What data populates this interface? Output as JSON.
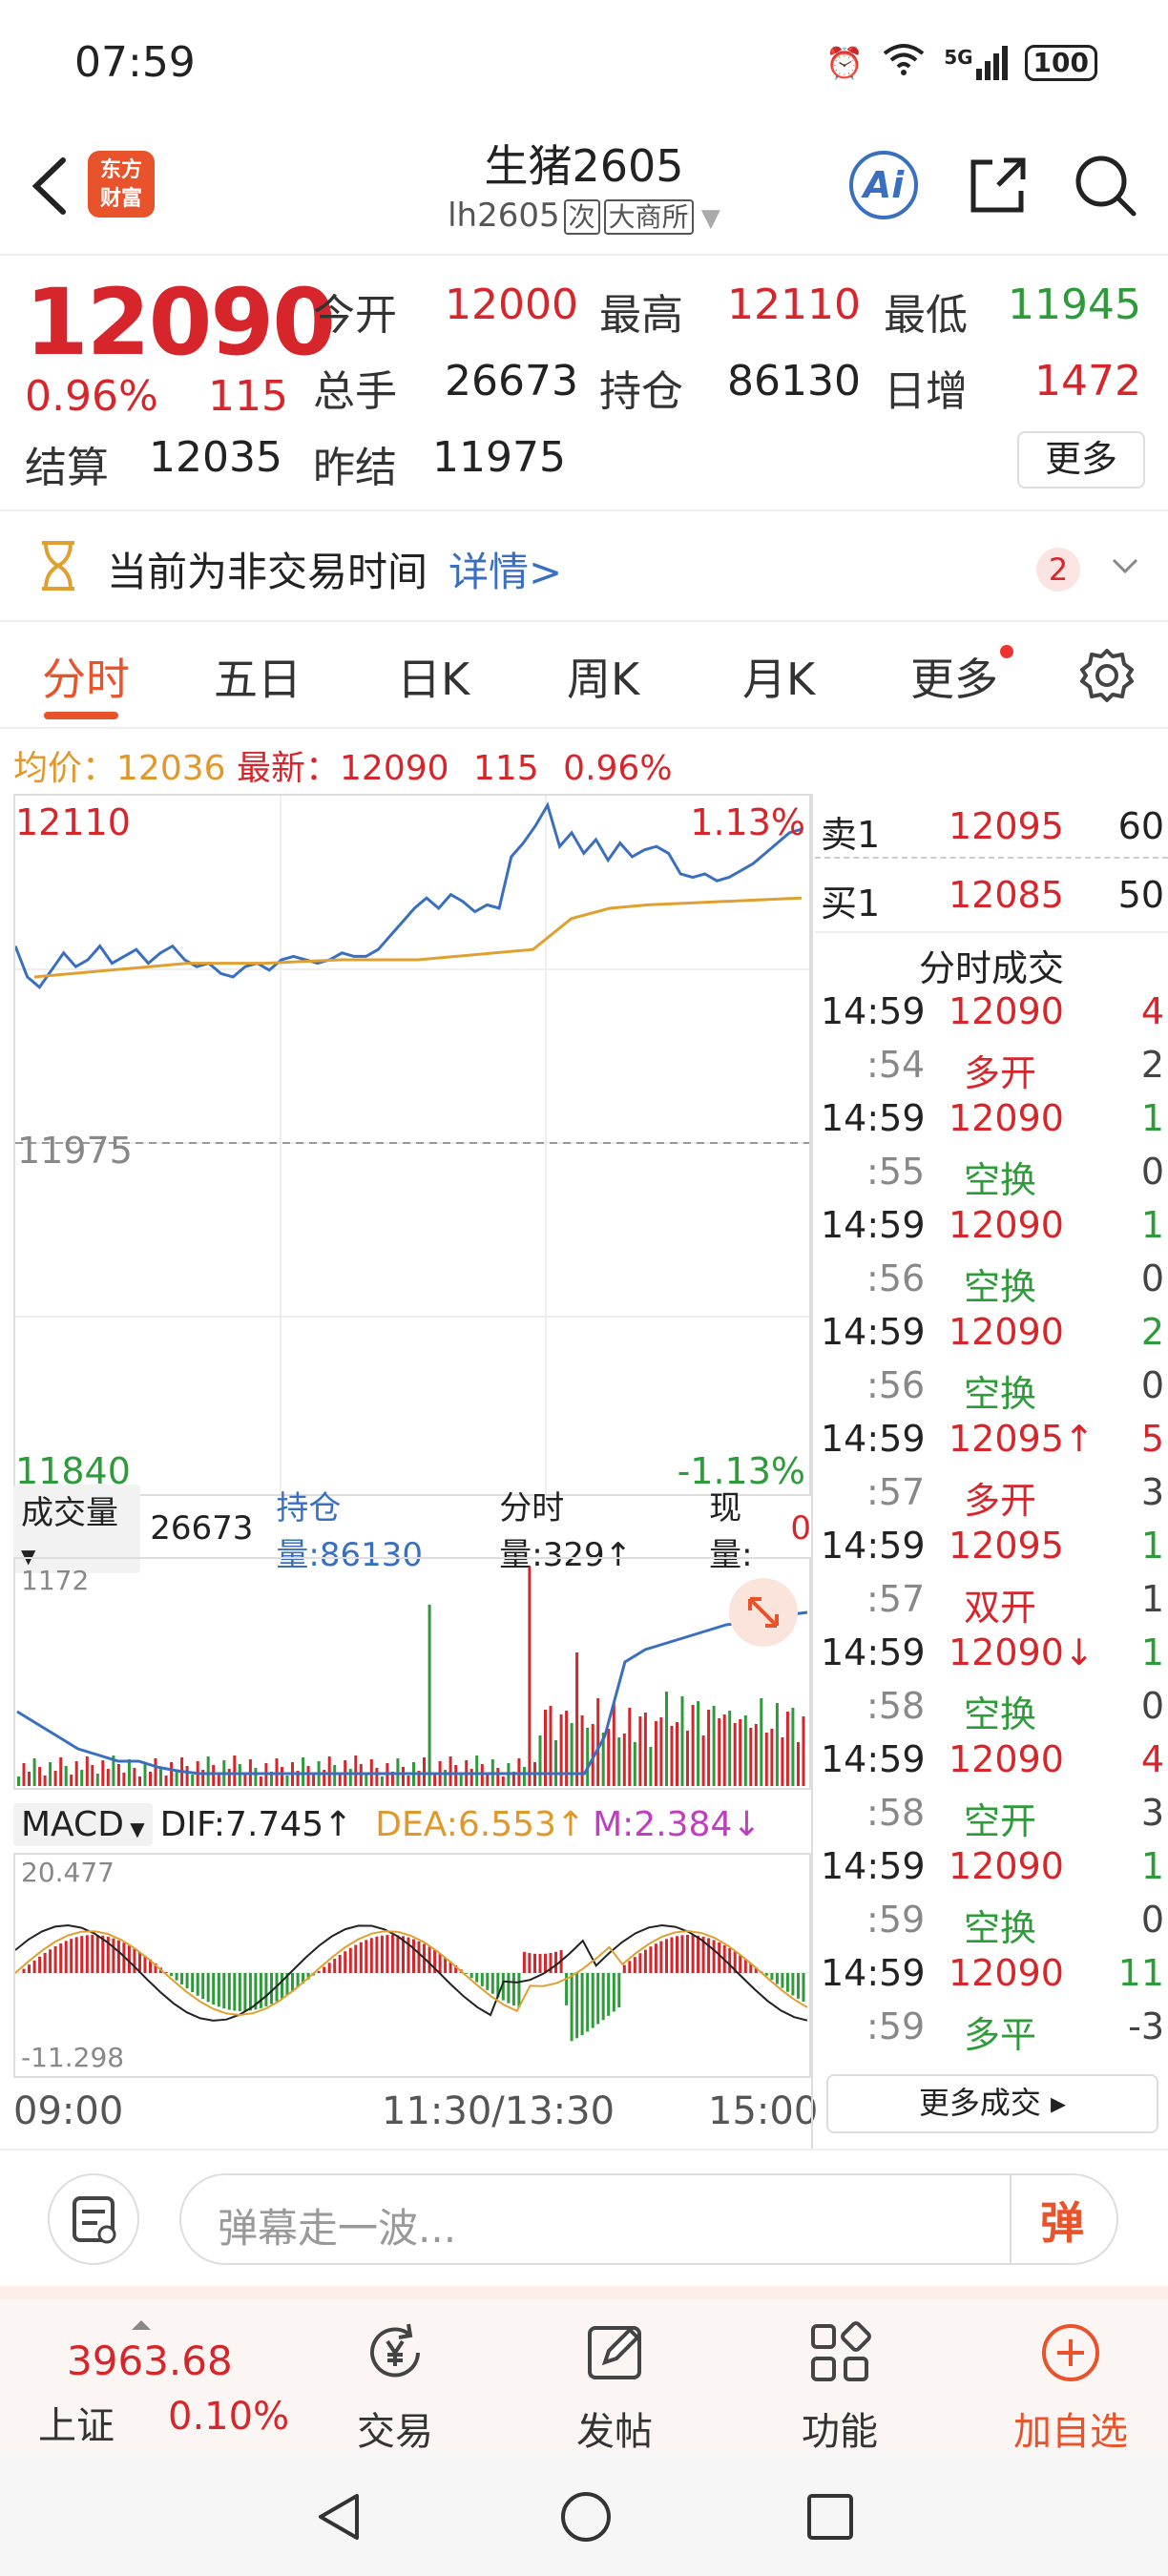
{
  "status": {
    "time": "07:59",
    "network": "5G",
    "battery": "100"
  },
  "header": {
    "title": "生猪2605",
    "code": "lh2605",
    "tag1": "次",
    "tag2": "大商所",
    "logo_line1": "东方",
    "logo_line2": "财富",
    "ai_label": "Ai"
  },
  "quote": {
    "price": "12090",
    "pct": "0.96%",
    "change": "115",
    "open_label": "今开",
    "open": "12000",
    "high_label": "最高",
    "high": "12110",
    "low_label": "最低",
    "low": "11945",
    "volume_label": "总手",
    "volume": "26673",
    "oi_label": "持仓",
    "oi": "86130",
    "dayinc_label": "日增",
    "dayinc": "1472",
    "settle_label": "结算",
    "settle": "12035",
    "prevsettle_label": "昨结",
    "prevsettle": "11975",
    "more_label": "更多"
  },
  "notice": {
    "text": "当前为非交易时间",
    "link": "详情>",
    "badge": "2"
  },
  "tabs": [
    "分时",
    "五日",
    "日K",
    "周K",
    "月K",
    "更多"
  ],
  "info": {
    "avg_label": "均价：",
    "avg": "12036",
    "last_label": "最新：",
    "last": "12090",
    "chg": "115",
    "pct": "0.96%"
  },
  "chart": {
    "max_label": "12110",
    "max_pct": "1.13%",
    "ref_label": "11975",
    "min_label": "11840",
    "min_pct": "-1.13%",
    "price_color": "#3a6fc0",
    "avg_color": "#e0a030"
  },
  "volume": {
    "label": "成交量",
    "value": "26673",
    "oi_label": "持仓量:86130",
    "min_vol": "分时量:329↑",
    "cur_vol_label": "现量:",
    "cur_vol": "0",
    "max_tick": "1172"
  },
  "macd": {
    "label": "MACD",
    "dif": "DIF:7.745↑",
    "dea": "DEA:6.553↑",
    "m": "M:2.384↓",
    "top": "20.477",
    "bottom": "-11.298"
  },
  "time_axis": {
    "start": "09:00",
    "mid": "11:30/13:30",
    "end": "15:00"
  },
  "order_book": {
    "sell": {
      "label": "卖1",
      "price": "12095",
      "qty": "60"
    },
    "buy": {
      "label": "买1",
      "price": "12085",
      "qty": "50"
    }
  },
  "trades_title": "分时成交",
  "trades": [
    {
      "time": "14:59",
      "price": "12090",
      "qty": "4",
      "type": "多开",
      "type_qty": "2",
      "sub": ":54",
      "price_color": "red",
      "type_color": "red",
      "qty_color": "red"
    },
    {
      "time": "14:59",
      "price": "12090",
      "qty": "1",
      "type": "空换",
      "type_qty": "0",
      "sub": ":55",
      "price_color": "red",
      "type_color": "green",
      "qty_color": "green"
    },
    {
      "time": "14:59",
      "price": "12090",
      "qty": "1",
      "type": "空换",
      "type_qty": "0",
      "sub": ":56",
      "price_color": "red",
      "type_color": "green",
      "qty_color": "green"
    },
    {
      "time": "14:59",
      "price": "12090",
      "qty": "2",
      "type": "空换",
      "type_qty": "0",
      "sub": ":56",
      "price_color": "red",
      "type_color": "green",
      "qty_color": "green"
    },
    {
      "time": "14:59",
      "price": "12095↑",
      "qty": "5",
      "type": "多开",
      "type_qty": "3",
      "sub": ":57",
      "price_color": "red",
      "type_color": "red",
      "qty_color": "red"
    },
    {
      "time": "14:59",
      "price": "12095",
      "qty": "1",
      "type": "双开",
      "type_qty": "1",
      "sub": ":57",
      "price_color": "red",
      "type_color": "red",
      "qty_color": "green"
    },
    {
      "time": "14:59",
      "price": "12090↓",
      "qty": "1",
      "type": "空换",
      "type_qty": "0",
      "sub": ":58",
      "price_color": "red",
      "type_color": "green",
      "qty_color": "green"
    },
    {
      "time": "14:59",
      "price": "12090",
      "qty": "4",
      "type": "空开",
      "type_qty": "3",
      "sub": ":58",
      "price_color": "red",
      "type_color": "green",
      "qty_color": "red"
    },
    {
      "time": "14:59",
      "price": "12090",
      "qty": "1",
      "type": "空换",
      "type_qty": "0",
      "sub": ":59",
      "price_color": "red",
      "type_color": "green",
      "qty_color": "green"
    },
    {
      "time": "14:59",
      "price": "12090",
      "qty": "11",
      "type": "多平",
      "type_qty": "-3",
      "sub": ":59",
      "price_color": "red",
      "type_color": "green",
      "qty_color": "green"
    }
  ],
  "more_trades": "更多成交 ▸",
  "comment": {
    "placeholder": "弹幕走一波...",
    "button": "弹"
  },
  "bottom_nav": {
    "index_value": "3963.68",
    "index_name": "上证",
    "index_pct": "0.10%",
    "trade": "交易",
    "post": "发帖",
    "func": "功能",
    "watch": "加自选"
  }
}
